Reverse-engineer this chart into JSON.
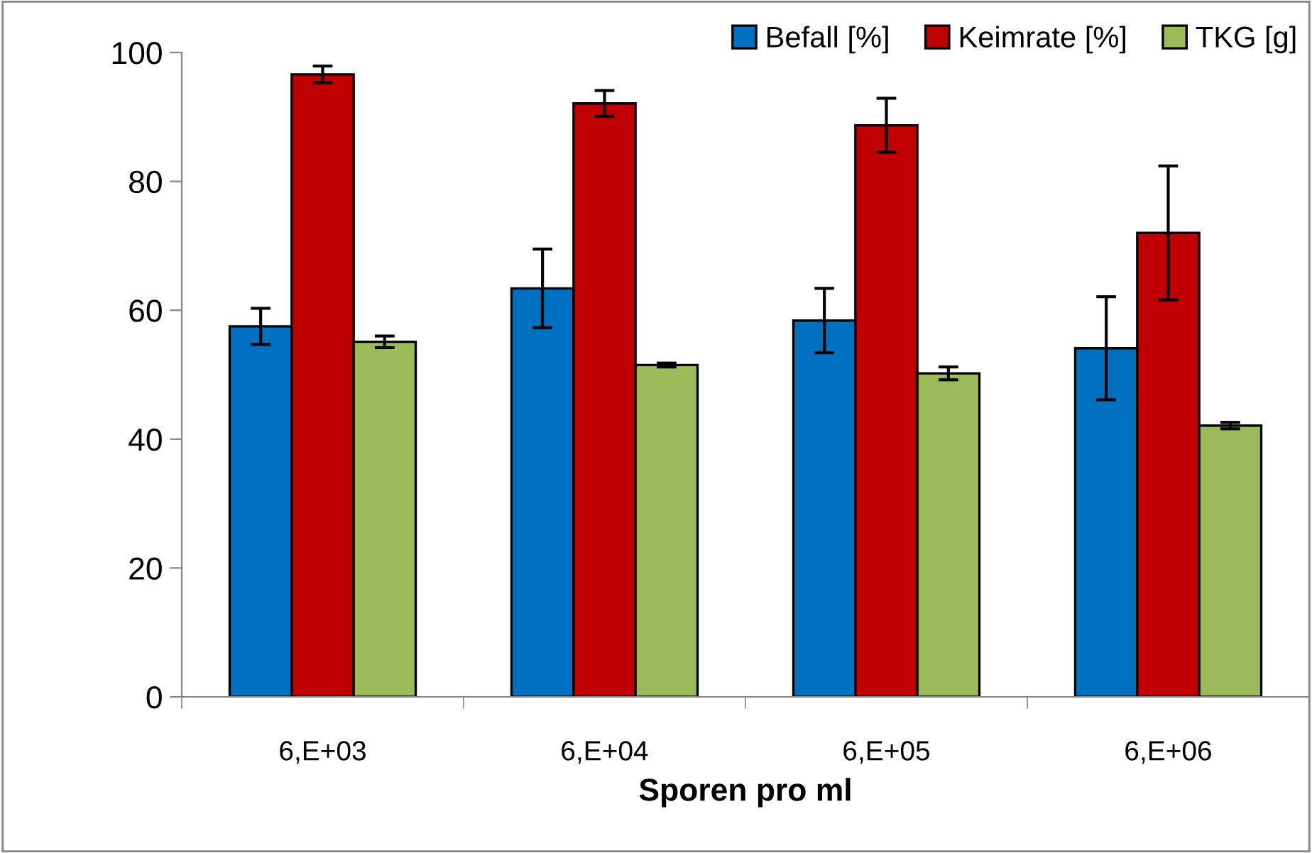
{
  "chart_data": {
    "type": "bar",
    "xlabel": "Sporen pro ml",
    "categories": [
      "6,E+03",
      "6,E+04",
      "6,E+05",
      "6,E+06"
    ],
    "series": [
      {
        "name": "Befall [%]",
        "color": "#0070c0",
        "values": [
          57.5,
          63.4,
          58.4,
          54.1
        ],
        "errors": [
          2.8,
          6.1,
          5,
          8
        ]
      },
      {
        "name": "Keimrate [%]",
        "color": "#c00000",
        "values": [
          96.6,
          92.1,
          88.7,
          72.0
        ],
        "errors": [
          1.3,
          2,
          4.2,
          10.4
        ]
      },
      {
        "name": "TKG [g]",
        "color": "#9bbb59",
        "values": [
          55.1,
          51.5,
          50.2,
          42.1
        ],
        "errors": [
          0.9,
          0.3,
          1,
          0.5
        ]
      }
    ],
    "ylim": [
      0,
      100
    ],
    "yticks": [
      0,
      20,
      40,
      60,
      80,
      100
    ],
    "grid": false,
    "legend": "top right"
  }
}
